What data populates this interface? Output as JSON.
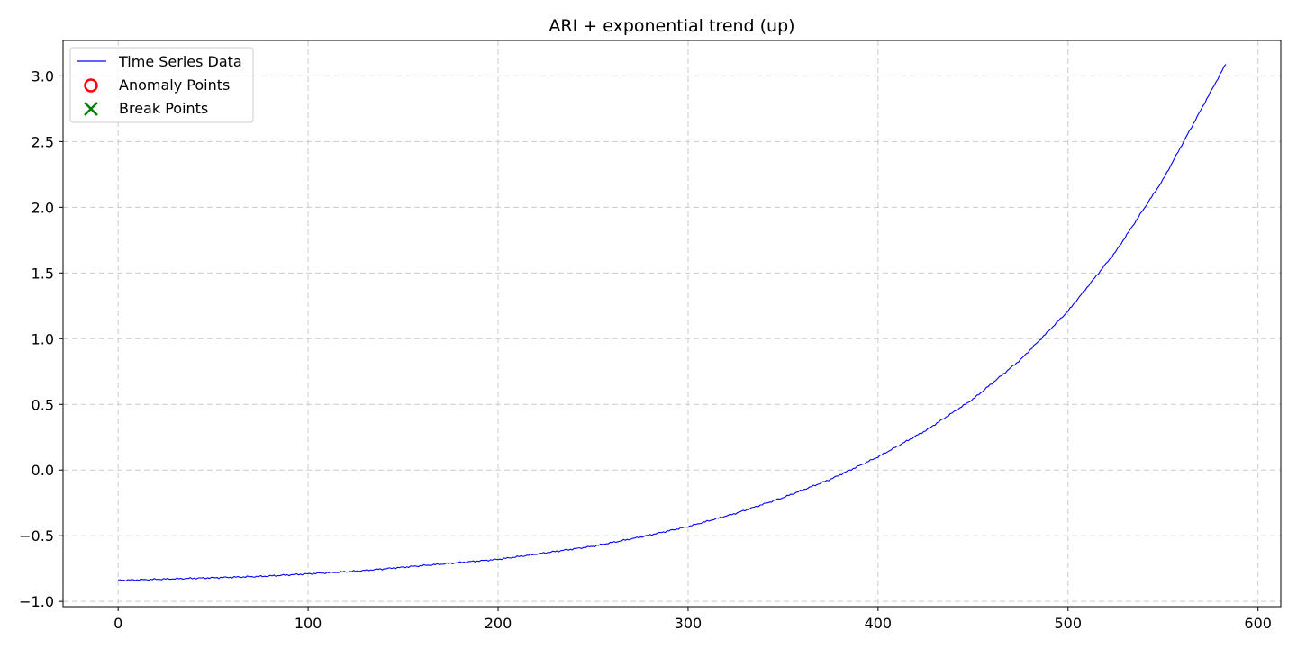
{
  "chart_data": {
    "type": "line",
    "title": "ARI + exponential trend (up)",
    "xlabel": "",
    "ylabel": "",
    "xlim": [
      -29,
      612
    ],
    "ylim": [
      -1.04,
      3.27
    ],
    "x_ticks": [
      0,
      100,
      200,
      300,
      400,
      500,
      600
    ],
    "x_tick_labels": [
      "0",
      "100",
      "200",
      "300",
      "400",
      "500",
      "600"
    ],
    "y_ticks": [
      -1.0,
      -0.5,
      0.0,
      0.5,
      1.0,
      1.5,
      2.0,
      2.5,
      3.0
    ],
    "y_tick_labels": [
      "−1.0",
      "−0.5",
      "0.0",
      "0.5",
      "1.0",
      "1.5",
      "2.0",
      "2.5",
      "3.0"
    ],
    "grid": true,
    "legend": {
      "placement": "top-left",
      "entries": [
        {
          "label": "Time Series Data",
          "marker": "line",
          "color": "#0000ff"
        },
        {
          "label": "Anomaly Points",
          "marker": "circle",
          "color": "#ff0000"
        },
        {
          "label": "Break Points",
          "marker": "x",
          "color": "#008000"
        }
      ]
    },
    "series": [
      {
        "name": "Time Series Data",
        "color": "#0000ff",
        "x": [
          0,
          25,
          50,
          75,
          100,
          125,
          150,
          175,
          200,
          225,
          250,
          275,
          300,
          325,
          350,
          375,
          400,
          425,
          450,
          475,
          500,
          525,
          550,
          583
        ],
        "y": [
          -0.84,
          -0.83,
          -0.82,
          -0.81,
          -0.79,
          -0.77,
          -0.74,
          -0.71,
          -0.68,
          -0.63,
          -0.58,
          -0.51,
          -0.43,
          -0.33,
          -0.21,
          -0.07,
          0.1,
          0.3,
          0.54,
          0.84,
          1.21,
          1.66,
          2.21,
          3.09
        ]
      }
    ],
    "anomaly_points": [],
    "break_points": []
  }
}
